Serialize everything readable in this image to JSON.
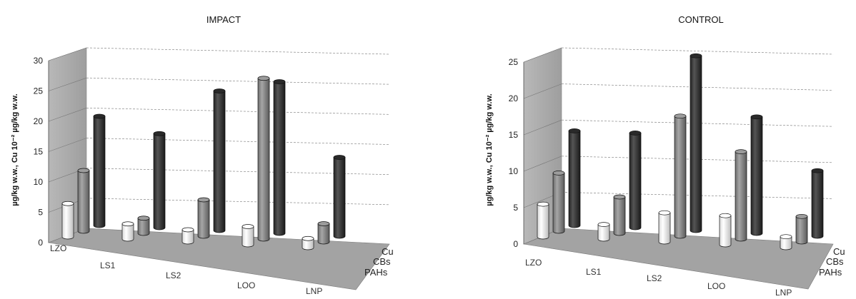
{
  "chart_data": [
    {
      "type": "bar",
      "title": "IMPACT",
      "ylabel": "µg/kg w.w., Cu 10⁻² µg/kg w.w.",
      "ylim": [
        0,
        30
      ],
      "yticks": [
        "0",
        "5",
        "10",
        "15",
        "20",
        "25",
        "30"
      ],
      "categories": [
        "LZO",
        "LS1",
        "LS2",
        "LOO",
        "LNP"
      ],
      "series": [
        {
          "name": "PAHs",
          "color": "#fafafa",
          "values": [
            5.5,
            2.5,
            2.0,
            3.0,
            1.5
          ]
        },
        {
          "name": "CBs",
          "color": "#8a8a8a",
          "values": [
            10,
            2.5,
            6.0,
            26.5,
            3.0
          ]
        },
        {
          "name": "Cu",
          "color": "#333333",
          "values": [
            18,
            15.5,
            23,
            25,
            13
          ]
        }
      ],
      "grid": true
    },
    {
      "type": "bar",
      "title": "CONTROL",
      "ylabel": "µg/kg w.w., Cu 10⁻² µg/kg w.w.",
      "ylim": [
        0,
        25
      ],
      "yticks": [
        "0",
        "5",
        "10",
        "15",
        "20",
        "25"
      ],
      "categories": [
        "LZO",
        "LS1",
        "LS2",
        "LOO",
        "LNP"
      ],
      "series": [
        {
          "name": "PAHs",
          "color": "#fafafa",
          "values": [
            4.5,
            2.0,
            4.0,
            4.0,
            1.5
          ]
        },
        {
          "name": "CBs",
          "color": "#8a8a8a",
          "values": [
            8,
            5,
            16.5,
            12,
            3.5
          ]
        },
        {
          "name": "Cu",
          "color": "#333333",
          "values": [
            13,
            13,
            24,
            16,
            9
          ]
        }
      ],
      "grid": true
    }
  ]
}
